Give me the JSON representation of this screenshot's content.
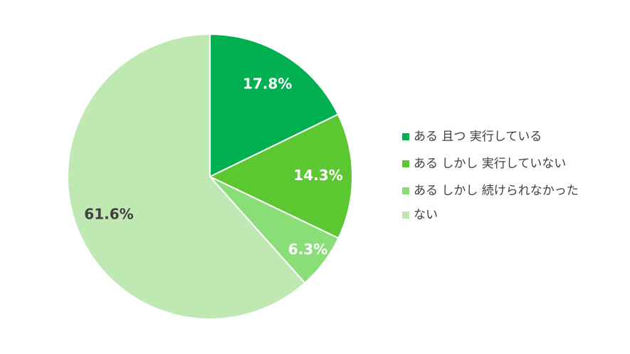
{
  "chart_data": {
    "type": "pie",
    "categories": [
      "ある 且つ 実行している",
      "ある しかし 実行していない",
      "ある しかし 続けられなかった",
      "ない"
    ],
    "values": [
      17.8,
      14.3,
      6.3,
      61.6
    ],
    "value_labels": [
      "17.8%",
      "14.3%",
      "6.3%",
      "61.6%"
    ],
    "colors": [
      "#00b050",
      "#5bc832",
      "#8ade78",
      "#bfe8b3"
    ],
    "label_colors": [
      "#ffffff",
      "#ffffff",
      "#ffffff",
      "#404040"
    ],
    "legend": "right"
  }
}
